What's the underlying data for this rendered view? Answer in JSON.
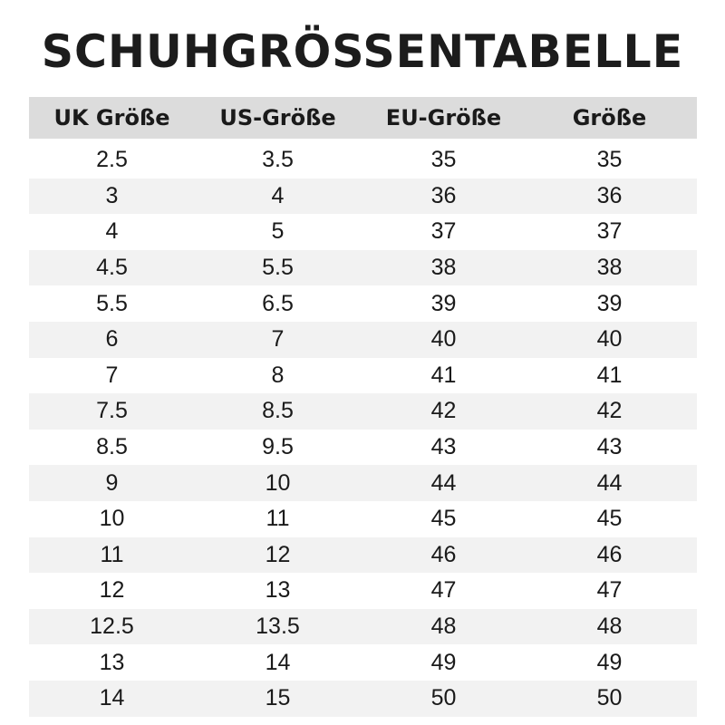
{
  "title": "SCHUHGRÖSSENTABELLE",
  "colors": {
    "header_bg": "#dcdcdc",
    "stripe_bg": "#f2f2f2",
    "text": "#1a1a1a"
  },
  "headers": [
    "UK Größe",
    "US-Größe",
    "EU-Größe",
    "Größe"
  ],
  "rows": [
    [
      "2.5",
      "3.5",
      "35",
      "35"
    ],
    [
      "3",
      "4",
      "36",
      "36"
    ],
    [
      "4",
      "5",
      "37",
      "37"
    ],
    [
      "4.5",
      "5.5",
      "38",
      "38"
    ],
    [
      "5.5",
      "6.5",
      "39",
      "39"
    ],
    [
      "6",
      "7",
      "40",
      "40"
    ],
    [
      "7",
      "8",
      "41",
      "41"
    ],
    [
      "7.5",
      "8.5",
      "42",
      "42"
    ],
    [
      "8.5",
      "9.5",
      "43",
      "43"
    ],
    [
      "9",
      "10",
      "44",
      "44"
    ],
    [
      "10",
      "11",
      "45",
      "45"
    ],
    [
      "11",
      "12",
      "46",
      "46"
    ],
    [
      "12",
      "13",
      "47",
      "47"
    ],
    [
      "12.5",
      "13.5",
      "48",
      "48"
    ],
    [
      "13",
      "14",
      "49",
      "49"
    ],
    [
      "14",
      "15",
      "50",
      "50"
    ]
  ]
}
